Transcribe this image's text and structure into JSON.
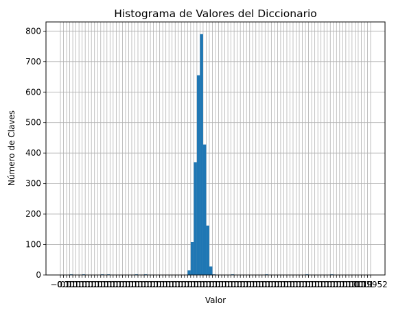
{
  "chart_data": {
    "type": "bar",
    "title": "Histograma de Valores del Diccionario",
    "xlabel": "Valor",
    "ylabel": "Número de Claves",
    "ylim": [
      0,
      830
    ],
    "y_ticks": [
      "0",
      "100",
      "200",
      "300",
      "400",
      "500",
      "600",
      "700",
      "800"
    ],
    "x_tick_labels_note": "overlapping unreadable tick labels along x-axis",
    "x_tick_fragments": [
      "−0.1",
      "0.19952"
    ],
    "grid": true,
    "bar_color": "#1f77b4",
    "x_range_bins": [
      0,
      100
    ],
    "bins": [
      {
        "bin": 3,
        "value": 2
      },
      {
        "bin": 5,
        "value": 1
      },
      {
        "bin": 7,
        "value": 2
      },
      {
        "bin": 10,
        "value": 1
      },
      {
        "bin": 13,
        "value": 2
      },
      {
        "bin": 15,
        "value": 2
      },
      {
        "bin": 16,
        "value": 1
      },
      {
        "bin": 20,
        "value": 1
      },
      {
        "bin": 22,
        "value": 1
      },
      {
        "bin": 24,
        "value": 2
      },
      {
        "bin": 26,
        "value": 1
      },
      {
        "bin": 27,
        "value": 2
      },
      {
        "bin": 29,
        "value": 1
      },
      {
        "bin": 32,
        "value": 1
      },
      {
        "bin": 36,
        "value": 1
      },
      {
        "bin": 39,
        "value": 1
      },
      {
        "bin": 40,
        "value": 1
      },
      {
        "bin": 41,
        "value": 15
      },
      {
        "bin": 42,
        "value": 108
      },
      {
        "bin": 43,
        "value": 370
      },
      {
        "bin": 44,
        "value": 655
      },
      {
        "bin": 45,
        "value": 790
      },
      {
        "bin": 46,
        "value": 428
      },
      {
        "bin": 47,
        "value": 162
      },
      {
        "bin": 48,
        "value": 28
      },
      {
        "bin": 49,
        "value": 2
      },
      {
        "bin": 52,
        "value": 1
      },
      {
        "bin": 55,
        "value": 2
      },
      {
        "bin": 57,
        "value": 1
      },
      {
        "bin": 61,
        "value": 1
      },
      {
        "bin": 63,
        "value": 1
      },
      {
        "bin": 66,
        "value": 2
      },
      {
        "bin": 69,
        "value": 1
      },
      {
        "bin": 73,
        "value": 1
      },
      {
        "bin": 76,
        "value": 1
      },
      {
        "bin": 79,
        "value": 2
      },
      {
        "bin": 81,
        "value": 1
      },
      {
        "bin": 84,
        "value": 1
      },
      {
        "bin": 87,
        "value": 2
      },
      {
        "bin": 90,
        "value": 1
      },
      {
        "bin": 93,
        "value": 1
      },
      {
        "bin": 97,
        "value": 1
      }
    ]
  }
}
